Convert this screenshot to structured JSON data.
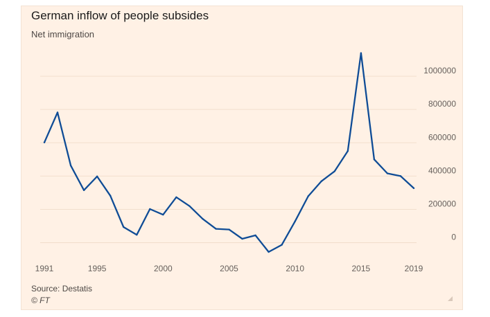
{
  "header": {
    "title": "German inflow of people subsides",
    "subtitle": "Net immigration"
  },
  "footer": {
    "source": "Source: Destatis",
    "credit": "© FT"
  },
  "colors": {
    "background": "#fff1e5",
    "line": "#0f4c96",
    "grid": "#f2dfcd",
    "axis_text": "#66605c"
  },
  "chart_data": {
    "type": "line",
    "title": "German inflow of people subsides",
    "subtitle": "Net immigration",
    "xlabel": "",
    "ylabel": "",
    "x": [
      1991,
      1992,
      1993,
      1994,
      1995,
      1996,
      1997,
      1998,
      1999,
      2000,
      2001,
      2002,
      2003,
      2004,
      2005,
      2006,
      2007,
      2008,
      2009,
      2010,
      2011,
      2012,
      2013,
      2014,
      2015,
      2016,
      2017,
      2018,
      2019
    ],
    "series": [
      {
        "name": "",
        "values": [
          602000,
          782000,
          463000,
          315000,
          398000,
          282000,
          94000,
          47000,
          202000,
          168000,
          273000,
          220000,
          143000,
          83000,
          79000,
          23000,
          44000,
          -56000,
          -13000,
          128000,
          279000,
          369000,
          429000,
          550000,
          1139000,
          500000,
          416000,
          400000,
          327000
        ]
      }
    ],
    "xlim": [
      1991,
      2019
    ],
    "ylim": [
      -60000,
      1150000
    ],
    "x_ticks": [
      "1991",
      "1995",
      "2000",
      "2005",
      "2010",
      "2015",
      "2019"
    ],
    "y_ticks": [
      "0",
      "200000",
      "400000",
      "600000",
      "800000",
      "1000000"
    ],
    "y_axis_position": "right",
    "grid": true,
    "legend": "none"
  }
}
